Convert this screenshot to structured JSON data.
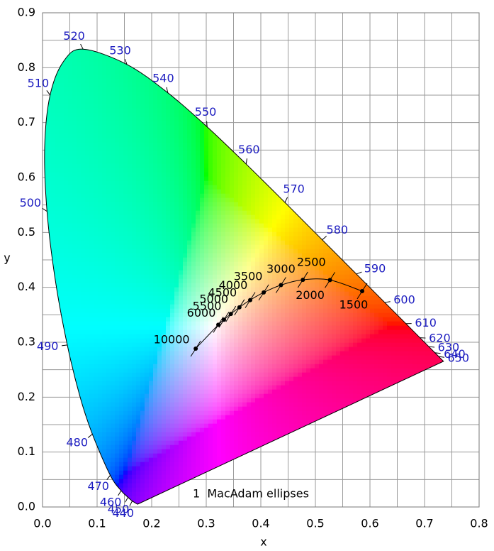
{
  "chart_data": {
    "type": "chromaticity",
    "xlabel": "x",
    "ylabel": "y",
    "xlim": [
      0,
      0.8
    ],
    "ylim": [
      0,
      0.9
    ],
    "xticks": [
      {
        "value": 0,
        "label": "0.0"
      },
      0.1,
      0.2,
      0.3,
      0.4,
      0.5,
      0.6,
      0.7,
      0.8
    ],
    "yticks": [
      {
        "value": 0,
        "label": "0.0"
      },
      0.1,
      0.2,
      0.3,
      0.4,
      0.5,
      0.6,
      0.7,
      0.8,
      0.9
    ],
    "grid": true,
    "spectral_locus": {
      "color": "#1c1cc0",
      "labels": [
        null,
        "440",
        "450",
        "460",
        "470",
        "480",
        null,
        "490",
        null,
        "500",
        null,
        "510",
        null,
        "520",
        "530",
        "540",
        "550",
        "560",
        "570",
        "580",
        "590",
        "600",
        "610",
        "620",
        "630",
        "640",
        "650",
        null
      ],
      "x": [
        0.1741,
        0.1644,
        0.1566,
        0.144,
        0.1241,
        0.0913,
        0.0687,
        0.0454,
        0.0235,
        0.0082,
        0.0039,
        0.0139,
        0.0389,
        0.0743,
        0.1547,
        0.2296,
        0.3016,
        0.3731,
        0.4441,
        0.5125,
        0.5752,
        0.627,
        0.6658,
        0.6915,
        0.7079,
        0.719,
        0.726,
        0.7347
      ],
      "y": [
        0.005,
        0.0109,
        0.0177,
        0.0297,
        0.0578,
        0.1327,
        0.2007,
        0.295,
        0.4127,
        0.5384,
        0.6548,
        0.7502,
        0.812,
        0.8338,
        0.8059,
        0.7543,
        0.6923,
        0.6245,
        0.5547,
        0.4866,
        0.4242,
        0.3725,
        0.334,
        0.3083,
        0.292,
        0.2809,
        0.274,
        0.2653
      ]
    },
    "planckian_locus": {
      "color": "#000000",
      "labels": [
        "1500",
        "2000",
        "2500",
        "3000",
        "3500",
        "4000",
        "4500",
        "5000",
        "5500",
        "6000",
        "10000"
      ],
      "x": [
        0.5857,
        0.5267,
        0.477,
        0.4369,
        0.4053,
        0.3805,
        0.3608,
        0.3451,
        0.3325,
        0.3221,
        0.2807
      ],
      "y": [
        0.3931,
        0.4133,
        0.4137,
        0.4041,
        0.3907,
        0.3768,
        0.3636,
        0.3516,
        0.3411,
        0.3318,
        0.2884
      ]
    },
    "annotation": "1  MacAdam ellipses"
  }
}
